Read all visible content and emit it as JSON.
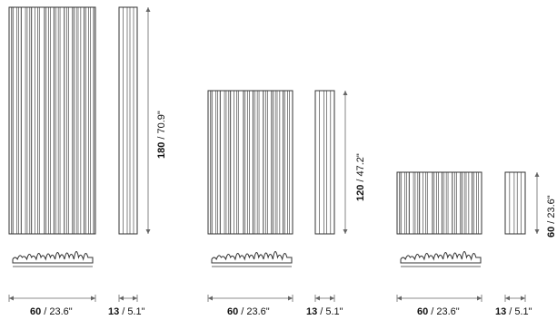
{
  "panels": [
    {
      "id": "tall",
      "height_label": {
        "value": "180",
        "unit": "/ 70.9\""
      },
      "width_label": {
        "value": "60",
        "unit": "/ 23.6\""
      },
      "depth_label": {
        "value": "13",
        "unit": "/ 5.1\""
      }
    },
    {
      "id": "medium",
      "height_label": {
        "value": "120",
        "unit": "/ 47.2\""
      },
      "width_label": {
        "value": "60",
        "unit": "/ 23.6\""
      },
      "depth_label": {
        "value": "13",
        "unit": "/ 5.1\""
      }
    },
    {
      "id": "short",
      "height_label": {
        "value": "60",
        "unit": "/ 23.6\""
      },
      "width_label": {
        "value": "60",
        "unit": "/ 23.6\""
      },
      "depth_label": {
        "value": "13",
        "unit": "/ 5.1\""
      }
    }
  ],
  "colors": {
    "line": "#333333",
    "dim": "#666666"
  }
}
